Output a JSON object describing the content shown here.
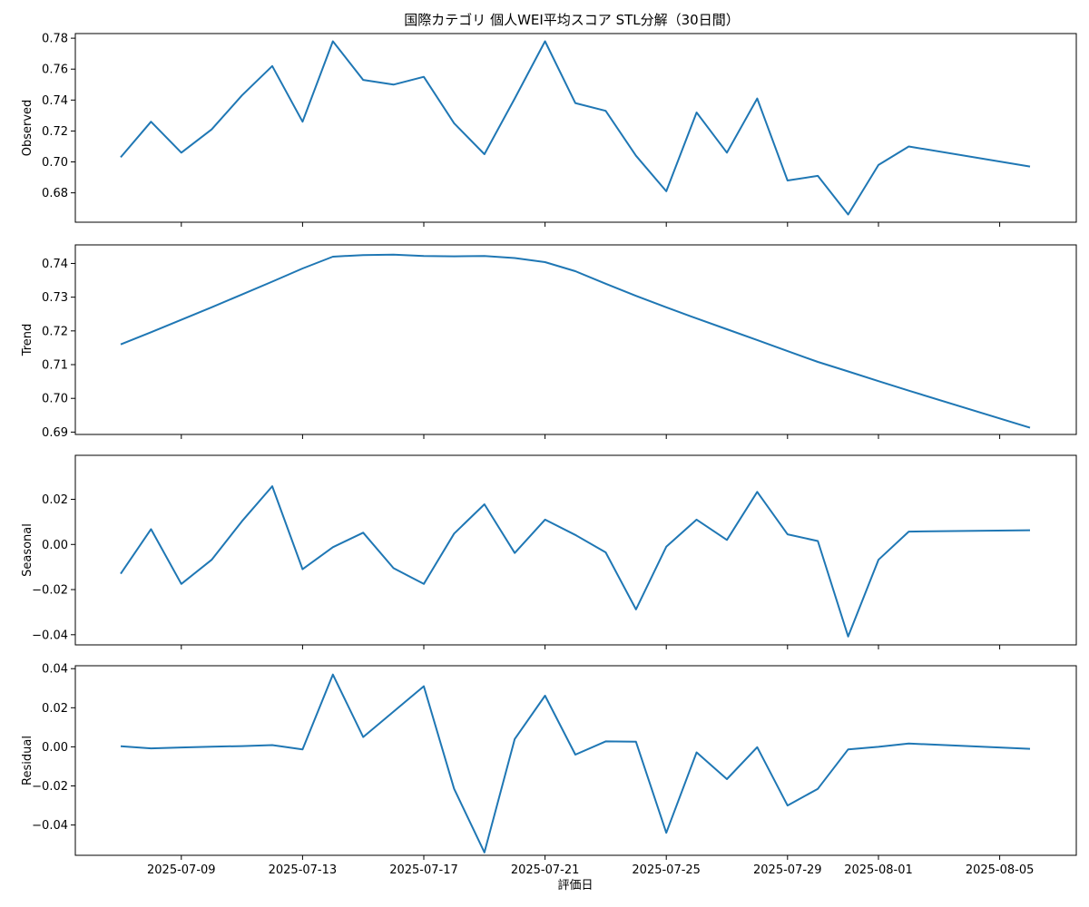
{
  "chart_data": {
    "type": "line",
    "title": "国際カテゴリ 個人WEI平均スコア STL分解（30日間）",
    "xlabel": "評価日",
    "x": [
      "2025-07-07",
      "2025-07-08",
      "2025-07-09",
      "2025-07-10",
      "2025-07-11",
      "2025-07-12",
      "2025-07-13",
      "2025-07-14",
      "2025-07-15",
      "2025-07-16",
      "2025-07-17",
      "2025-07-18",
      "2025-07-19",
      "2025-07-20",
      "2025-07-21",
      "2025-07-22",
      "2025-07-23",
      "2025-07-24",
      "2025-07-25",
      "2025-07-26",
      "2025-07-27",
      "2025-07-28",
      "2025-07-29",
      "2025-07-30",
      "2025-07-31",
      "2025-08-01",
      "2025-08-02",
      "2025-08-06"
    ],
    "x_ticks": [
      "2025-07-09",
      "2025-07-13",
      "2025-07-17",
      "2025-07-21",
      "2025-07-25",
      "2025-07-29",
      "2025-08-01",
      "2025-08-05"
    ],
    "grid": false,
    "panels": [
      {
        "name": "Observed",
        "ylabel": "Observed",
        "ylim": [
          0.661,
          0.783
        ],
        "yticks": [
          0.68,
          0.7,
          0.72,
          0.74,
          0.76,
          0.78
        ],
        "ytick_labels": [
          "0.68",
          "0.70",
          "0.72",
          "0.74",
          "0.76",
          "0.78"
        ],
        "values": [
          0.703,
          0.726,
          0.706,
          0.721,
          0.743,
          0.762,
          0.726,
          0.778,
          0.753,
          0.75,
          0.755,
          0.725,
          0.705,
          0.741,
          0.778,
          0.738,
          0.733,
          0.704,
          0.681,
          0.732,
          0.706,
          0.741,
          0.688,
          0.691,
          0.666,
          0.698,
          0.71,
          0.697
        ]
      },
      {
        "name": "Trend",
        "ylabel": "Trend",
        "ylim": [
          0.6893,
          0.7455
        ],
        "yticks": [
          0.69,
          0.7,
          0.71,
          0.72,
          0.73,
          0.74
        ],
        "ytick_labels": [
          "0.69",
          "0.70",
          "0.71",
          "0.72",
          "0.73",
          "0.74"
        ],
        "values": [
          0.716,
          0.7196,
          0.7233,
          0.727,
          0.7308,
          0.7346,
          0.7385,
          0.742,
          0.7425,
          0.7426,
          0.7422,
          0.7421,
          0.7422,
          0.7416,
          0.7404,
          0.7377,
          0.734,
          0.7304,
          0.727,
          0.7237,
          0.7205,
          0.7173,
          0.714,
          0.7108,
          0.708,
          0.7051,
          0.7023,
          0.6913
        ]
      },
      {
        "name": "Seasonal",
        "ylabel": "Seasonal",
        "ylim": [
          -0.0445,
          0.0395
        ],
        "yticks": [
          -0.04,
          -0.02,
          0.0,
          0.02
        ],
        "ytick_labels": [
          "−0.04",
          "−0.02",
          "0.00",
          "0.02"
        ],
        "values": [
          -0.013,
          0.0068,
          -0.0175,
          -0.0068,
          0.0103,
          0.0258,
          -0.011,
          -0.0012,
          0.0052,
          -0.0105,
          -0.0175,
          0.0048,
          0.0178,
          -0.0038,
          0.011,
          0.0042,
          -0.0035,
          -0.0288,
          -0.001,
          0.011,
          0.002,
          0.0233,
          0.0045,
          0.0015,
          -0.0408,
          -0.0068,
          0.0057,
          0.0063
        ]
      },
      {
        "name": "Residual",
        "ylabel": "Residual",
        "ylim": [
          -0.0555,
          0.0415
        ],
        "yticks": [
          -0.04,
          -0.02,
          0.0,
          0.02,
          0.04
        ],
        "ytick_labels": [
          "−0.04",
          "−0.02",
          "0.00",
          "0.02",
          "0.04"
        ],
        "values": [
          0.0003,
          -0.0008,
          -0.0003,
          0.0001,
          0.0004,
          0.0009,
          -0.0013,
          0.037,
          0.005,
          0.018,
          0.031,
          -0.0215,
          -0.054,
          0.004,
          0.0262,
          -0.004,
          0.0028,
          0.0026,
          -0.044,
          -0.0028,
          -0.0165,
          -0.0002,
          -0.03,
          -0.0215,
          -0.0013,
          0.0,
          0.0017,
          -0.001
        ]
      }
    ]
  }
}
